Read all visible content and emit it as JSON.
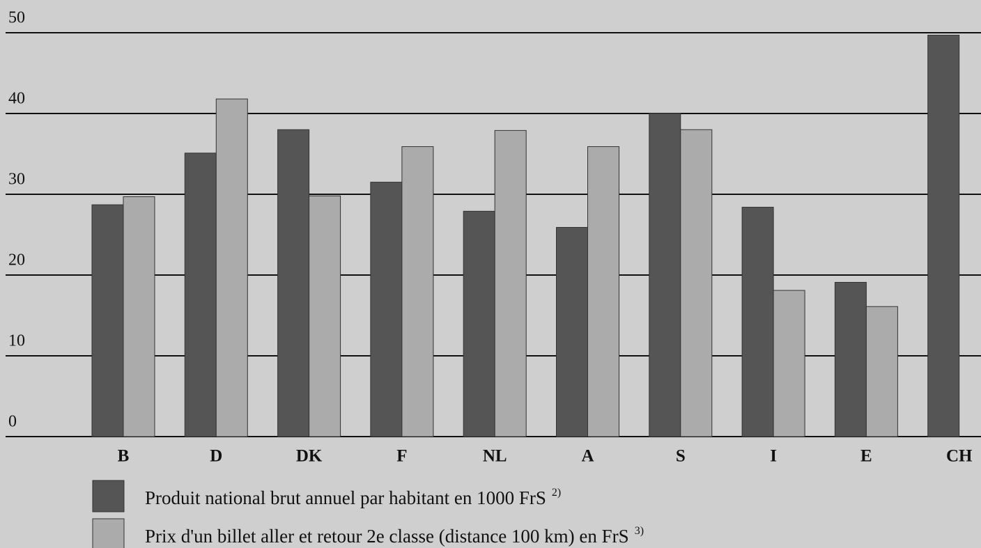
{
  "chart_data": {
    "type": "bar",
    "categories": [
      "B",
      "D",
      "DK",
      "F",
      "NL",
      "A",
      "S",
      "I",
      "E",
      "CH"
    ],
    "series": [
      {
        "name": "Produit national brut annuel par habitant en 1000 FrS",
        "note": "2)",
        "color": "#555555",
        "values": [
          28.7,
          35.1,
          38.0,
          31.5,
          27.9,
          25.9,
          40.0,
          28.4,
          19.1,
          49.7
        ]
      },
      {
        "name": "Prix d'un billet aller et retour 2e classe (distance 100 km) en FrS",
        "note": "3)",
        "color": "#ababab",
        "values": [
          29.7,
          41.8,
          29.8,
          35.9,
          37.9,
          35.9,
          38.0,
          18.1,
          16.1,
          null
        ]
      }
    ],
    "ylim": [
      0,
      50
    ],
    "yticks": [
      0,
      10,
      20,
      30,
      40,
      50
    ],
    "grid": true
  }
}
